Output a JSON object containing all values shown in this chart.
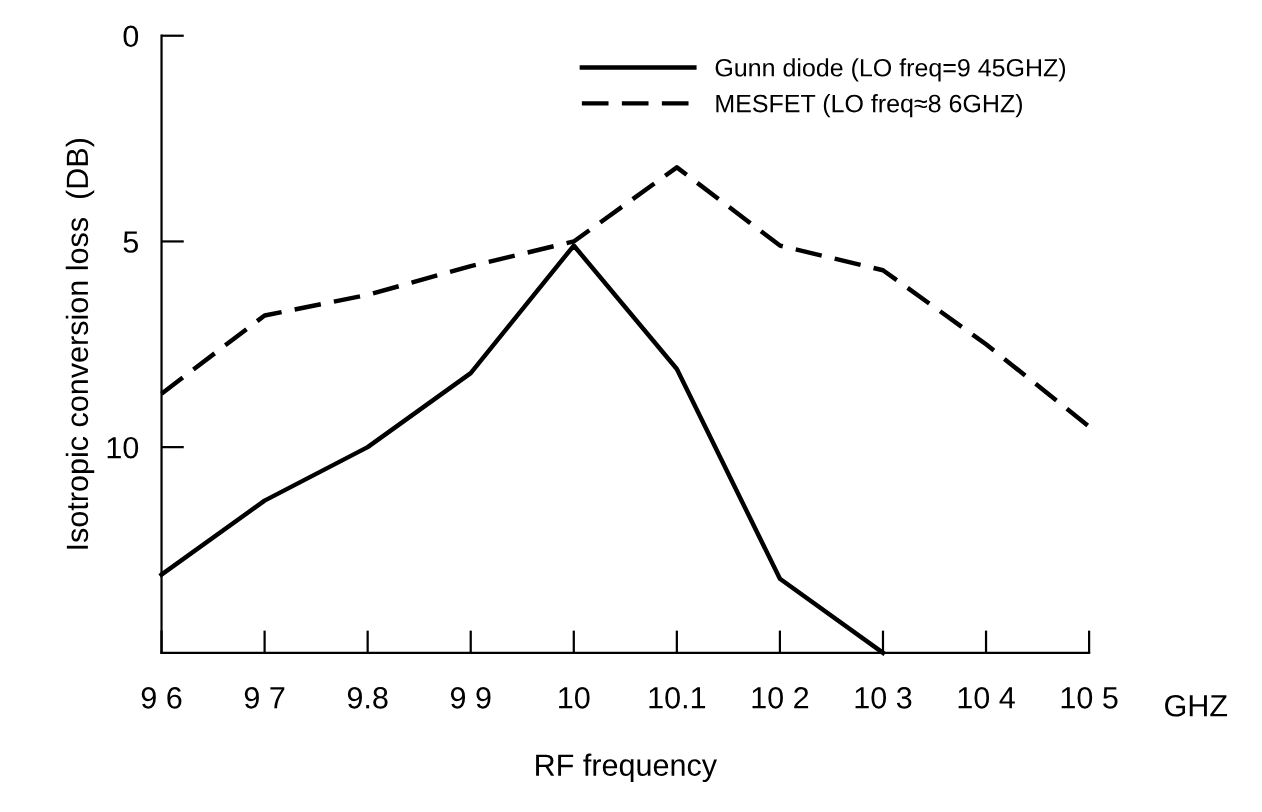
{
  "chart_data": {
    "type": "line",
    "xlabel": "RF frequency",
    "ylabel": "Isotropic conversion loss  (DB)",
    "x": [
      9.6,
      9.7,
      9.8,
      9.9,
      10.0,
      10.1,
      10.2,
      10.3,
      10.4,
      10.5
    ],
    "series": [
      {
        "name": "Gunn diode (LO freq=9 45GHZ)",
        "color": "#000000",
        "line_style": "solid",
        "values": [
          13.1,
          11.3,
          10.0,
          8.2,
          5.1,
          8.1,
          13.2,
          15.0,
          null,
          null
        ]
      },
      {
        "name": "MESFET (LO freq≈8 6GHZ)",
        "color": "#000000",
        "line_style": "dashed",
        "values": [
          8.7,
          6.8,
          6.3,
          5.6,
          5.0,
          3.2,
          5.1,
          5.7,
          7.5,
          9.5
        ]
      }
    ],
    "xlim": [
      9.6,
      10.5
    ],
    "ylim": [
      15,
      0
    ],
    "xticks": [
      {
        "value": 9.6,
        "label": "9 6"
      },
      {
        "value": 9.7,
        "label": "9 7"
      },
      9.8,
      {
        "value": 9.9,
        "label": "9 9"
      },
      10,
      10.1,
      {
        "value": 10.2,
        "label": "10 2"
      },
      {
        "value": 10.3,
        "label": "10 3"
      },
      {
        "value": 10.4,
        "label": "10 4"
      },
      {
        "value": 10.5,
        "label": "10 5"
      }
    ],
    "yticks": [
      0,
      5,
      10
    ],
    "annotations": [
      "GHZ"
    ],
    "legend": "top right",
    "grid": false,
    "marker": "none"
  }
}
